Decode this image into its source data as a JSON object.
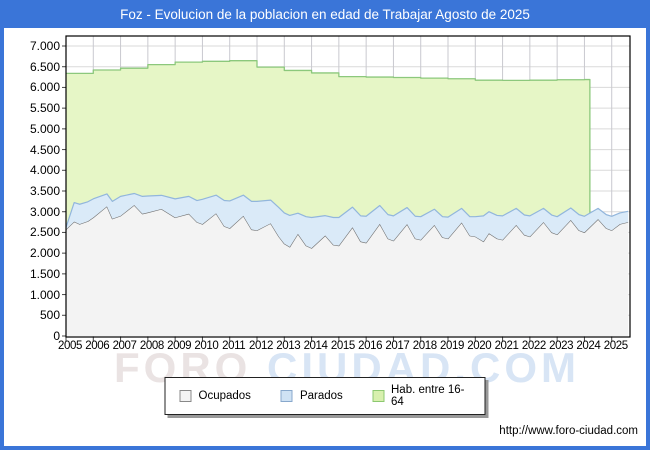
{
  "title": "Foz - Evolucion de la poblacion en edad de Trabajar Agosto de 2025",
  "footer": {
    "url": "http://www.foro-ciudad.com"
  },
  "watermark": {
    "part1": "FORO",
    "part2": "CIUDAD.COM"
  },
  "colors": {
    "title_bar": "#3a75d8",
    "frame": "#3a75d8",
    "grid_h": "#dadada",
    "grid_v": "#c9c9cf",
    "axis_border": "#000000",
    "tick": "#444444",
    "watermark_part1": "#eae3e3",
    "watermark_part2": "#d8e5f5"
  },
  "legend": {
    "items": [
      {
        "label": "Ocupados",
        "fill": "#f3f3f3",
        "stroke": "#888888"
      },
      {
        "label": "Parados",
        "fill": "#cfe2f4",
        "stroke": "#88a8cc"
      },
      {
        "label": "Hab. entre 16-64",
        "fill": "#d8f0ae",
        "stroke": "#8cc870"
      }
    ]
  },
  "chart_data": {
    "type": "area",
    "title": "Foz - Evolucion de la poblacion en edad de Trabajar Agosto de 2025",
    "xlabel": "",
    "ylabel": "",
    "x_axis": {
      "range": [
        2005,
        2025.67
      ],
      "ticks": [
        [
          2005,
          "2005"
        ],
        [
          2006,
          "2006"
        ],
        [
          2007,
          "2007"
        ],
        [
          2008,
          "2008"
        ],
        [
          2009,
          "2009"
        ],
        [
          2010,
          "2010"
        ],
        [
          2011,
          "2011"
        ],
        [
          2012,
          "2012"
        ],
        [
          2013,
          "2013"
        ],
        [
          2014,
          "2014"
        ],
        [
          2015,
          "2015"
        ],
        [
          2016,
          "2016"
        ],
        [
          2017,
          "2017"
        ],
        [
          2018,
          "2018"
        ],
        [
          2019,
          "2019"
        ],
        [
          2020,
          "2020"
        ],
        [
          2021,
          "2021"
        ],
        [
          2022,
          "2022"
        ],
        [
          2023,
          "2023"
        ],
        [
          2024,
          "2024"
        ],
        [
          2025,
          "2025"
        ]
      ]
    },
    "y_axis": {
      "max": 7000,
      "ticks": [
        [
          0,
          "0"
        ],
        [
          500,
          "500"
        ],
        [
          1000,
          "1.000"
        ],
        [
          1500,
          "1.500"
        ],
        [
          2000,
          "2.000"
        ],
        [
          2500,
          "2.500"
        ],
        [
          3000,
          "3.000"
        ],
        [
          3500,
          "3.500"
        ],
        [
          4000,
          "4.000"
        ],
        [
          4500,
          "4.500"
        ],
        [
          5000,
          "5.000"
        ],
        [
          5500,
          "5.500"
        ],
        [
          6000,
          "6.000"
        ],
        [
          6500,
          "6.500"
        ],
        [
          7000,
          "7.000"
        ]
      ],
      "grid": true
    },
    "legend_position": "bottom-center",
    "t": [
      2005.0,
      2005.3,
      2005.5,
      2005.8,
      2006.0,
      2006.5,
      2006.7,
      2007.0,
      2007.5,
      2007.8,
      2008.0,
      2008.5,
      2009.0,
      2009.5,
      2009.8,
      2010.0,
      2010.5,
      2010.8,
      2011.0,
      2011.5,
      2011.8,
      2012.0,
      2012.5,
      2012.8,
      2013.0,
      2013.2,
      2013.5,
      2013.8,
      2014.0,
      2014.5,
      2014.8,
      2015.0,
      2015.5,
      2015.8,
      2016.0,
      2016.5,
      2016.8,
      2017.0,
      2017.5,
      2017.8,
      2018.0,
      2018.5,
      2018.8,
      2019.0,
      2019.5,
      2019.8,
      2020.0,
      2020.3,
      2020.5,
      2020.8,
      2021.0,
      2021.5,
      2021.8,
      2022.0,
      2022.5,
      2022.8,
      2023.0,
      2023.5,
      2023.8,
      2024.0,
      2024.5,
      2024.8,
      2025.0,
      2025.3,
      2025.6
    ],
    "series": [
      {
        "name": "Hab. entre 16-64",
        "style": "step-area",
        "fill": "#e6f6c6",
        "stroke": "#8cc87c",
        "ends_with_drop_to_zero": true,
        "points": [
          [
            2005,
            6340
          ],
          [
            2006,
            6420
          ],
          [
            2007,
            6465
          ],
          [
            2008,
            6550
          ],
          [
            2009,
            6610
          ],
          [
            2010,
            6630
          ],
          [
            2011,
            6645
          ],
          [
            2012,
            6490
          ],
          [
            2013,
            6410
          ],
          [
            2014,
            6350
          ],
          [
            2015,
            6260
          ],
          [
            2016,
            6250
          ],
          [
            2017,
            6240
          ],
          [
            2018,
            6225
          ],
          [
            2019,
            6210
          ],
          [
            2020,
            6175
          ],
          [
            2021,
            6170
          ],
          [
            2022,
            6175
          ],
          [
            2023,
            6185
          ],
          [
            2024,
            6190
          ],
          [
            2024.2,
            6190
          ]
        ]
      },
      {
        "name": "Ocupados",
        "style": "area",
        "fill": "#f3f3f3",
        "stroke": "#6e6e6e",
        "values": [
          2570,
          2760,
          2700,
          2770,
          2860,
          3130,
          2830,
          2900,
          3160,
          2950,
          2980,
          3065,
          2860,
          2950,
          2750,
          2700,
          2960,
          2650,
          2600,
          2900,
          2570,
          2550,
          2720,
          2400,
          2230,
          2150,
          2465,
          2180,
          2120,
          2425,
          2200,
          2180,
          2625,
          2280,
          2250,
          2705,
          2350,
          2300,
          2700,
          2350,
          2320,
          2680,
          2380,
          2350,
          2740,
          2420,
          2400,
          2280,
          2480,
          2350,
          2320,
          2680,
          2440,
          2400,
          2750,
          2500,
          2450,
          2800,
          2550,
          2500,
          2820,
          2600,
          2550,
          2700,
          2750
        ]
      },
      {
        "name": "Parados",
        "style": "band",
        "stack_on": "Ocupados",
        "fill": "#daeaf8",
        "stroke": "#92b6dc",
        "values": [
          50,
          460,
          480,
          470,
          450,
          300,
          420,
          470,
          280,
          420,
          400,
          330,
          450,
          420,
          520,
          600,
          440,
          620,
          660,
          500,
          680,
          700,
          560,
          700,
          740,
          760,
          500,
          700,
          740,
          480,
          660,
          680,
          485,
          620,
          640,
          445,
          580,
          600,
          400,
          540,
          560,
          380,
          500,
          520,
          340,
          460,
          480,
          620,
          520,
          560,
          580,
          400,
          480,
          500,
          330,
          420,
          430,
          290,
          380,
          390,
          260,
          330,
          340,
          270,
          260
        ]
      }
    ]
  }
}
